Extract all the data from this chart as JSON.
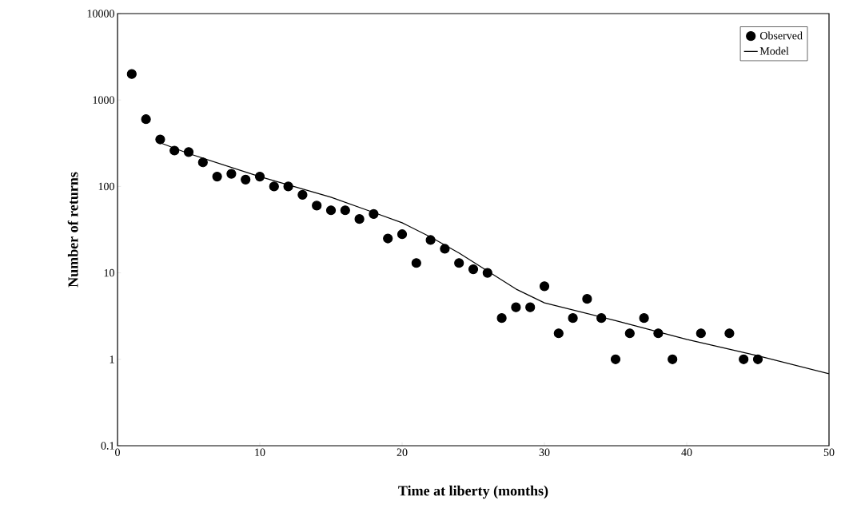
{
  "chart_data": {
    "type": "scatter",
    "xlabel": "Time at liberty (months)",
    "ylabel": "Number of returns",
    "log": "y",
    "xlim": [
      0,
      50
    ],
    "xticks": [
      0,
      10,
      20,
      30,
      40,
      50
    ],
    "ylim": [
      0.1,
      10000
    ],
    "yticks": [
      0.1,
      1,
      10,
      100,
      1000,
      10000
    ],
    "legend": "top right",
    "grid": false,
    "series": [
      {
        "name": "Observed",
        "marker": "circle",
        "color": "#000000",
        "x": [
          1,
          2,
          3,
          4,
          5,
          6,
          7,
          8,
          9,
          10,
          11,
          12,
          13,
          14,
          15,
          16,
          17,
          18,
          19,
          20,
          21,
          22,
          23,
          24,
          25,
          26,
          27,
          28,
          29,
          30,
          31,
          32,
          33,
          34,
          35,
          36,
          37,
          38,
          39,
          41,
          43,
          44,
          45
        ],
        "values": [
          2000,
          600,
          350,
          260,
          250,
          190,
          130,
          140,
          120,
          130,
          100,
          100,
          80,
          60,
          53,
          53,
          42,
          48,
          25,
          28,
          13,
          24,
          19,
          13,
          11,
          10,
          3,
          4,
          4,
          7,
          2,
          3,
          5,
          3,
          1,
          2,
          3,
          2,
          1,
          2,
          2,
          1,
          1
        ]
      },
      {
        "name": "Model",
        "type": "line",
        "marker": "none",
        "line_style": "solid",
        "color": "#000000",
        "x": [
          3,
          5,
          10,
          15,
          18,
          20,
          22,
          24,
          26,
          28,
          30,
          35,
          40,
          45,
          50
        ],
        "values": [
          320,
          240,
          130,
          75,
          50,
          38,
          26,
          17,
          10.5,
          6.5,
          4.5,
          2.8,
          1.7,
          1.1,
          0.68
        ]
      }
    ]
  }
}
